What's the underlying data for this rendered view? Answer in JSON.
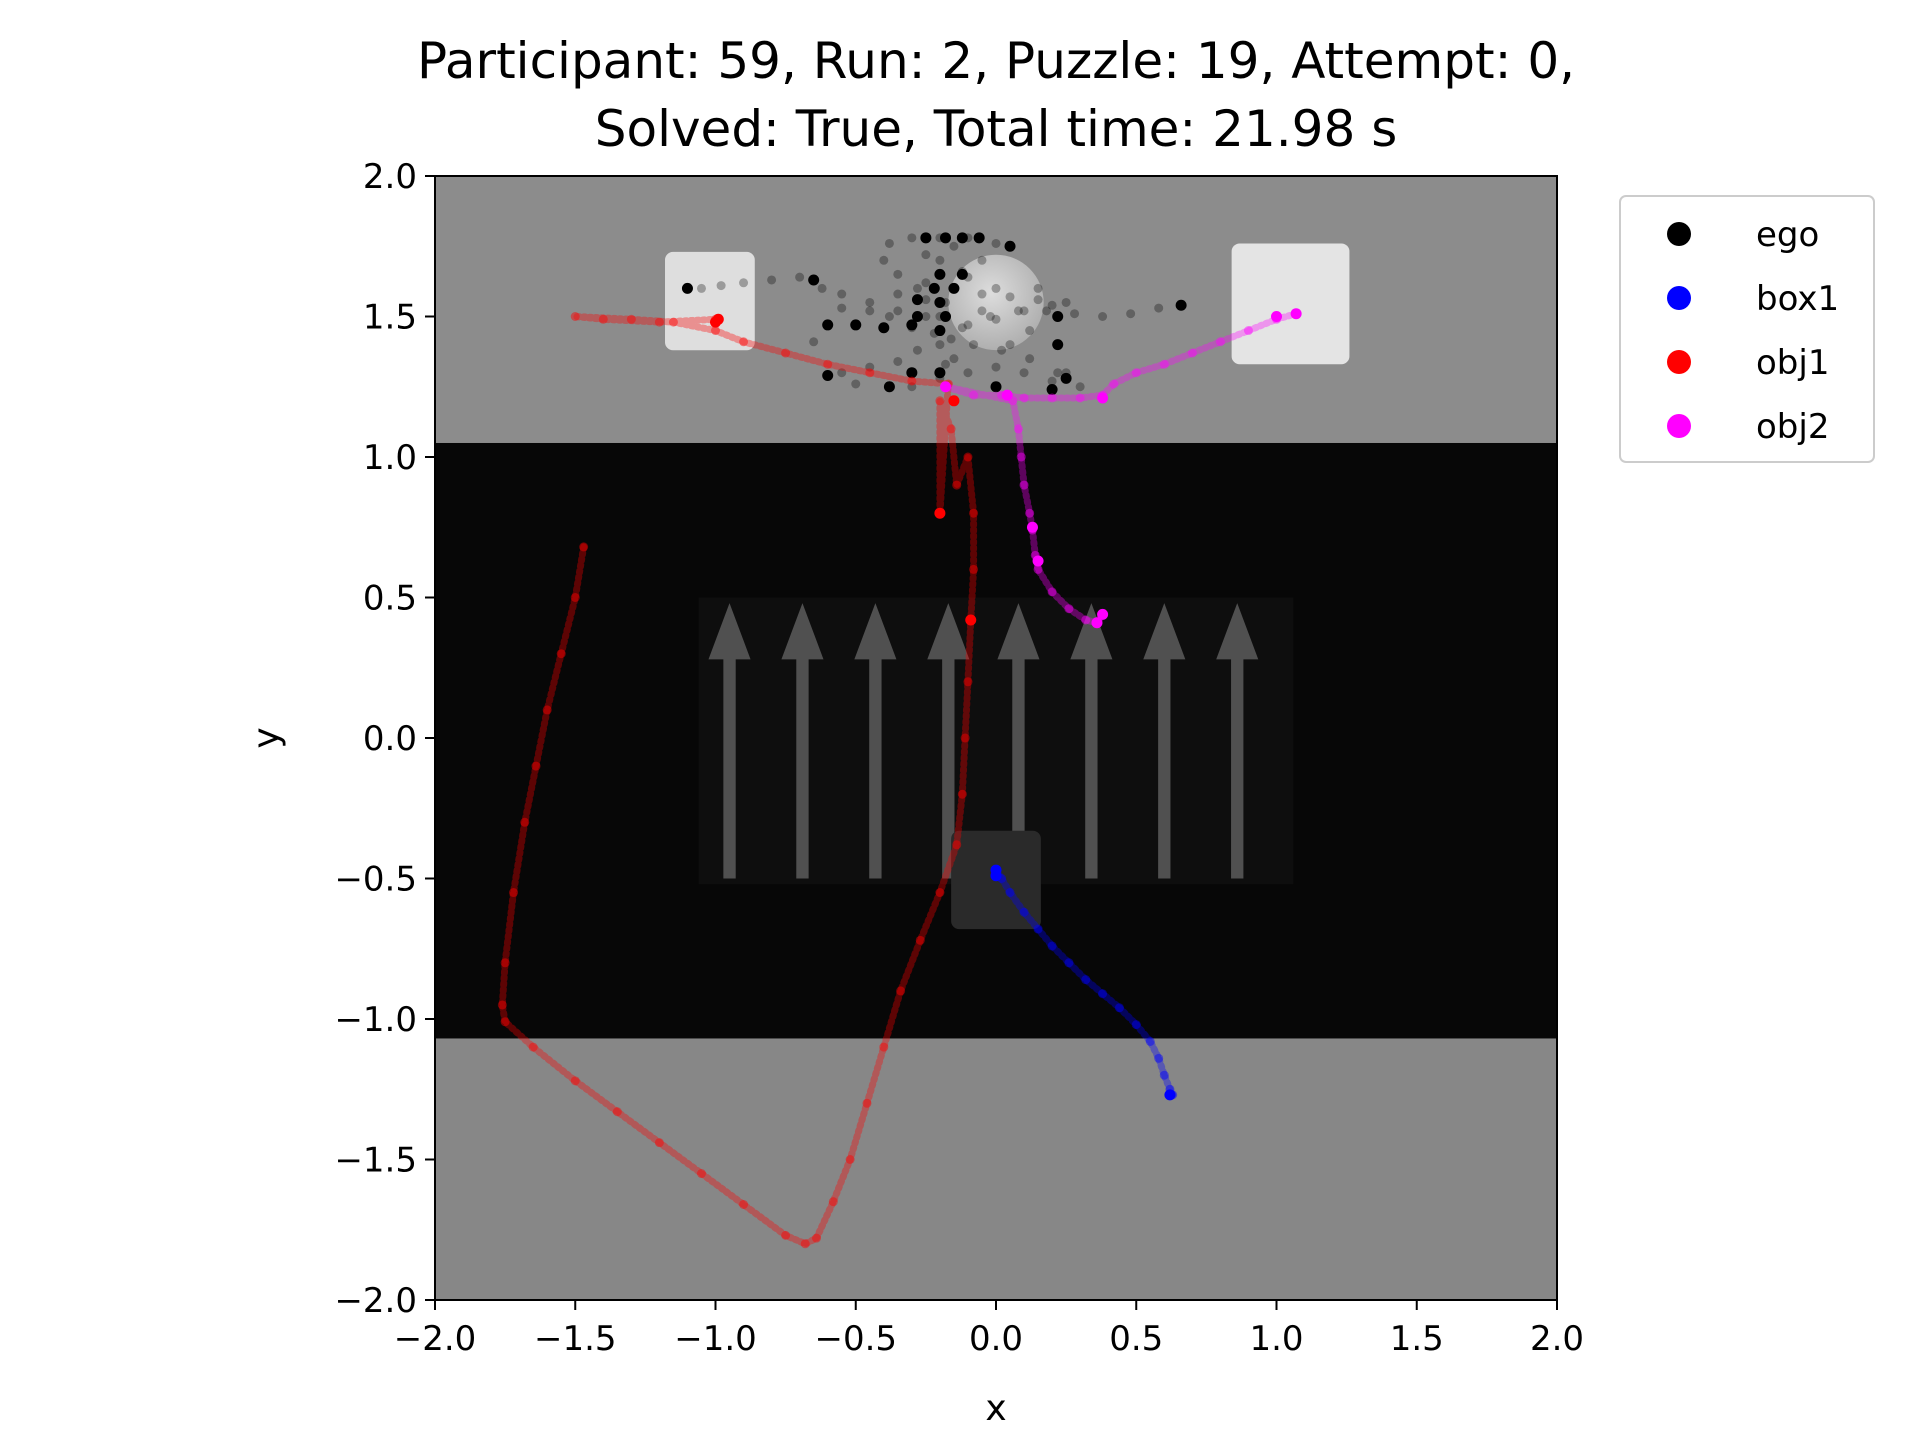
{
  "chart_data": {
    "type": "scatter",
    "title_line1": "Participant: 59, Run: 2, Puzzle: 19, Attempt: 0,",
    "title_line2": "Solved: True, Total time: 21.98 s",
    "xlabel": "x",
    "ylabel": "y",
    "xlim": [
      -2.0,
      2.0
    ],
    "ylim": [
      -2.0,
      2.0
    ],
    "xticks": [
      -2.0,
      -1.5,
      -1.0,
      -0.5,
      0.0,
      0.5,
      1.0,
      1.5,
      2.0
    ],
    "yticks": [
      -2.0,
      -1.5,
      -1.0,
      -0.5,
      0.0,
      0.5,
      1.0,
      1.5,
      2.0
    ],
    "xtick_labels": [
      "−2.0",
      "−1.5",
      "−1.0",
      "−0.5",
      "0.0",
      "0.5",
      "1.0",
      "1.5",
      "2.0"
    ],
    "ytick_labels": [
      "−2.0",
      "−1.5",
      "−1.0",
      "−0.5",
      "0.0",
      "0.5",
      "1.0",
      "1.5",
      "2.0"
    ],
    "legend_position": "outside-top-right",
    "background_zones": [
      {
        "name": "upper-floor",
        "x": [
          -2.0,
          2.0
        ],
        "y": [
          1.05,
          2.0
        ],
        "color": "#8c8c8c"
      },
      {
        "name": "dark-band",
        "x": [
          -2.0,
          2.0
        ],
        "y": [
          -1.07,
          1.05
        ],
        "color": "#070707"
      },
      {
        "name": "lower-floor",
        "x": [
          -2.0,
          2.0
        ],
        "y": [
          -2.0,
          -1.07
        ],
        "color": "#878787"
      }
    ],
    "scene_objects": [
      {
        "name": "cube-left",
        "x": [
          -1.18,
          -0.86
        ],
        "y": [
          1.38,
          1.73
        ],
        "color": "#dedede"
      },
      {
        "name": "cube-right",
        "x": [
          0.84,
          1.26
        ],
        "y": [
          1.33,
          1.76
        ],
        "color": "#e4e4e4"
      },
      {
        "name": "cube-dark",
        "x": [
          -0.16,
          0.16
        ],
        "y": [
          -0.68,
          -0.33
        ],
        "color": "#2a2a2a"
      },
      {
        "name": "sphere",
        "cx": 0.0,
        "cy": 1.55,
        "r": 0.17,
        "color": "#cfcfcf"
      }
    ],
    "arrows": {
      "x_centers": [
        -0.95,
        -0.69,
        -0.43,
        -0.17,
        0.08,
        0.34,
        0.6,
        0.86
      ],
      "y_from": -0.5,
      "y_to": 0.48,
      "panel_x": [
        -1.06,
        1.06
      ],
      "panel_y": [
        -0.52,
        0.5
      ],
      "color": "#505050"
    },
    "series": [
      {
        "name": "ego",
        "color": "#000000",
        "points": [
          [
            -1.1,
            1.6
          ],
          [
            -1.05,
            1.6
          ],
          [
            -0.98,
            1.61
          ],
          [
            -0.9,
            1.62
          ],
          [
            -0.8,
            1.63
          ],
          [
            -0.7,
            1.64
          ],
          [
            -0.62,
            1.6
          ],
          [
            -0.55,
            1.58
          ],
          [
            -0.45,
            1.55
          ],
          [
            -0.38,
            1.5
          ],
          [
            -0.3,
            1.46
          ],
          [
            -0.35,
            1.52
          ],
          [
            -0.45,
            1.52
          ],
          [
            -0.55,
            1.53
          ],
          [
            -0.6,
            1.47
          ],
          [
            -0.5,
            1.47
          ],
          [
            -0.4,
            1.46
          ],
          [
            -0.3,
            1.47
          ],
          [
            -0.2,
            1.45
          ],
          [
            -0.1,
            1.47
          ],
          [
            0.0,
            1.49
          ],
          [
            0.1,
            1.52
          ],
          [
            0.2,
            1.54
          ],
          [
            0.25,
            1.55
          ],
          [
            0.15,
            1.56
          ],
          [
            0.05,
            1.57
          ],
          [
            -0.05,
            1.58
          ],
          [
            -0.15,
            1.6
          ],
          [
            -0.25,
            1.62
          ],
          [
            -0.35,
            1.65
          ],
          [
            -0.4,
            1.7
          ],
          [
            -0.38,
            1.76
          ],
          [
            -0.3,
            1.78
          ],
          [
            -0.2,
            1.78
          ],
          [
            -0.1,
            1.78
          ],
          [
            0.0,
            1.76
          ],
          [
            0.05,
            1.75
          ],
          [
            -0.05,
            1.7
          ],
          [
            -0.12,
            1.66
          ],
          [
            -0.15,
            1.6
          ],
          [
            -0.18,
            1.55
          ],
          [
            -0.2,
            1.5
          ],
          [
            -0.22,
            1.44
          ],
          [
            -0.28,
            1.38
          ],
          [
            -0.35,
            1.34
          ],
          [
            -0.45,
            1.32
          ],
          [
            -0.55,
            1.3
          ],
          [
            -0.6,
            1.29
          ],
          [
            -0.5,
            1.26
          ],
          [
            -0.38,
            1.25
          ],
          [
            -0.3,
            1.25
          ],
          [
            -0.2,
            1.28
          ],
          [
            -0.1,
            1.3
          ],
          [
            0.0,
            1.32
          ],
          [
            0.1,
            1.3
          ],
          [
            0.2,
            1.27
          ],
          [
            0.3,
            1.25
          ],
          [
            0.22,
            1.3
          ],
          [
            0.12,
            1.35
          ],
          [
            0.02,
            1.38
          ],
          [
            -0.08,
            1.4
          ],
          [
            -0.16,
            1.42
          ],
          [
            -0.12,
            1.46
          ],
          [
            -0.02,
            1.5
          ],
          [
            0.08,
            1.52
          ],
          [
            0.18,
            1.52
          ],
          [
            0.28,
            1.51
          ],
          [
            0.38,
            1.5
          ],
          [
            0.48,
            1.51
          ],
          [
            0.58,
            1.53
          ],
          [
            0.66,
            1.54
          ],
          [
            -0.2,
            1.7
          ],
          [
            -0.15,
            1.75
          ],
          [
            -0.25,
            1.72
          ],
          [
            -0.28,
            1.6
          ],
          [
            -0.25,
            1.5
          ],
          [
            -0.2,
            1.4
          ],
          [
            -0.3,
            1.3
          ],
          [
            -0.65,
            1.41
          ],
          [
            -0.15,
            1.35
          ],
          [
            0.05,
            1.4
          ],
          [
            0.0,
            1.6
          ],
          [
            -0.1,
            1.64
          ],
          [
            -0.05,
            1.52
          ],
          [
            0.15,
            1.6
          ],
          [
            0.12,
            1.45
          ],
          [
            -0.35,
            1.58
          ],
          [
            -0.25,
            1.56
          ],
          [
            -0.18,
            1.33
          ],
          [
            0.25,
            1.3
          ]
        ],
        "solid_points": [
          [
            -1.1,
            1.6
          ],
          [
            -0.65,
            1.63
          ],
          [
            -0.6,
            1.47
          ],
          [
            -0.5,
            1.47
          ],
          [
            -0.4,
            1.46
          ],
          [
            -0.3,
            1.47
          ],
          [
            -0.2,
            1.45
          ],
          [
            -0.18,
            1.5
          ],
          [
            -0.2,
            1.55
          ],
          [
            -0.22,
            1.6
          ],
          [
            -0.2,
            1.65
          ],
          [
            -0.25,
            1.78
          ],
          [
            -0.18,
            1.78
          ],
          [
            -0.12,
            1.78
          ],
          [
            -0.06,
            1.78
          ],
          [
            0.05,
            1.75
          ],
          [
            -0.28,
            1.5
          ],
          [
            -0.28,
            1.56
          ],
          [
            -0.6,
            1.29
          ],
          [
            -0.38,
            1.25
          ],
          [
            -0.3,
            1.3
          ],
          [
            -0.2,
            1.3
          ],
          [
            0.0,
            1.25
          ],
          [
            0.2,
            1.24
          ],
          [
            0.25,
            1.28
          ],
          [
            0.22,
            1.4
          ],
          [
            0.22,
            1.5
          ],
          [
            0.66,
            1.54
          ],
          [
            -0.15,
            1.6
          ],
          [
            -0.12,
            1.65
          ]
        ]
      },
      {
        "name": "box1",
        "color": "#0000ff",
        "points": [
          [
            0.0,
            -0.47
          ],
          [
            0.02,
            -0.5
          ],
          [
            0.05,
            -0.55
          ],
          [
            0.1,
            -0.62
          ],
          [
            0.15,
            -0.68
          ],
          [
            0.2,
            -0.74
          ],
          [
            0.26,
            -0.8
          ],
          [
            0.32,
            -0.86
          ],
          [
            0.38,
            -0.91
          ],
          [
            0.44,
            -0.96
          ],
          [
            0.5,
            -1.02
          ],
          [
            0.55,
            -1.08
          ],
          [
            0.58,
            -1.14
          ],
          [
            0.6,
            -1.2
          ],
          [
            0.62,
            -1.25
          ],
          [
            0.63,
            -1.27
          ]
        ],
        "solid_points": [
          [
            0.0,
            -0.47
          ],
          [
            0.0,
            -0.49
          ],
          [
            0.62,
            -1.27
          ]
        ]
      },
      {
        "name": "obj1",
        "color": "#ff0000",
        "points": [
          [
            -1.47,
            0.68
          ],
          [
            -1.5,
            0.5
          ],
          [
            -1.55,
            0.3
          ],
          [
            -1.6,
            0.1
          ],
          [
            -1.64,
            -0.1
          ],
          [
            -1.68,
            -0.3
          ],
          [
            -1.72,
            -0.55
          ],
          [
            -1.75,
            -0.8
          ],
          [
            -1.76,
            -0.95
          ],
          [
            -1.75,
            -1.01
          ],
          [
            -1.65,
            -1.1
          ],
          [
            -1.5,
            -1.22
          ],
          [
            -1.35,
            -1.33
          ],
          [
            -1.2,
            -1.44
          ],
          [
            -1.05,
            -1.55
          ],
          [
            -0.9,
            -1.66
          ],
          [
            -0.75,
            -1.77
          ],
          [
            -0.68,
            -1.8
          ],
          [
            -0.64,
            -1.78
          ],
          [
            -0.58,
            -1.65
          ],
          [
            -0.52,
            -1.5
          ],
          [
            -0.46,
            -1.3
          ],
          [
            -0.4,
            -1.1
          ],
          [
            -0.34,
            -0.9
          ],
          [
            -0.27,
            -0.72
          ],
          [
            -0.2,
            -0.55
          ],
          [
            -0.14,
            -0.38
          ],
          [
            -0.12,
            -0.2
          ],
          [
            -0.11,
            0.0
          ],
          [
            -0.1,
            0.2
          ],
          [
            -0.09,
            0.42
          ],
          [
            -0.08,
            0.6
          ],
          [
            -0.08,
            0.8
          ],
          [
            -0.1,
            1.0
          ],
          [
            -0.14,
            0.9
          ],
          [
            -0.16,
            1.1
          ],
          [
            -0.2,
            1.2
          ],
          [
            -0.2,
            0.8
          ],
          [
            -0.17,
            1.26
          ],
          [
            -0.3,
            1.27
          ],
          [
            -0.45,
            1.3
          ],
          [
            -0.6,
            1.33
          ],
          [
            -0.75,
            1.37
          ],
          [
            -0.9,
            1.41
          ],
          [
            -1.0,
            1.45
          ],
          [
            -1.15,
            1.48
          ],
          [
            -1.3,
            1.49
          ],
          [
            -1.5,
            1.5
          ],
          [
            -1.4,
            1.49
          ],
          [
            -1.2,
            1.48
          ],
          [
            -1.0,
            1.49
          ]
        ],
        "solid_points": [
          [
            -0.99,
            1.49
          ],
          [
            -1.0,
            1.48
          ],
          [
            -0.15,
            1.2
          ],
          [
            -0.09,
            0.42
          ],
          [
            -0.2,
            0.8
          ]
        ]
      },
      {
        "name": "obj2",
        "color": "#ff00ff",
        "points": [
          [
            1.07,
            1.51
          ],
          [
            1.0,
            1.49
          ],
          [
            0.9,
            1.45
          ],
          [
            0.8,
            1.41
          ],
          [
            0.7,
            1.37
          ],
          [
            0.6,
            1.33
          ],
          [
            0.5,
            1.3
          ],
          [
            0.42,
            1.26
          ],
          [
            0.38,
            1.22
          ],
          [
            0.3,
            1.21
          ],
          [
            0.2,
            1.21
          ],
          [
            0.1,
            1.21
          ],
          [
            0.02,
            1.22
          ],
          [
            -0.08,
            1.22
          ],
          [
            -0.18,
            1.25
          ],
          [
            0.06,
            1.2
          ],
          [
            0.08,
            1.1
          ],
          [
            0.09,
            1.0
          ],
          [
            0.1,
            0.9
          ],
          [
            0.12,
            0.8
          ],
          [
            0.13,
            0.74
          ],
          [
            0.14,
            0.65
          ],
          [
            0.15,
            0.6
          ],
          [
            0.2,
            0.52
          ],
          [
            0.26,
            0.46
          ],
          [
            0.32,
            0.42
          ],
          [
            0.36,
            0.41
          ],
          [
            0.38,
            0.44
          ]
        ],
        "solid_points": [
          [
            1.07,
            1.51
          ],
          [
            1.0,
            1.5
          ],
          [
            0.38,
            1.21
          ],
          [
            0.04,
            1.22
          ],
          [
            -0.18,
            1.25
          ],
          [
            0.13,
            0.75
          ],
          [
            0.15,
            0.63
          ],
          [
            0.36,
            0.41
          ],
          [
            0.38,
            0.44
          ]
        ]
      }
    ]
  }
}
